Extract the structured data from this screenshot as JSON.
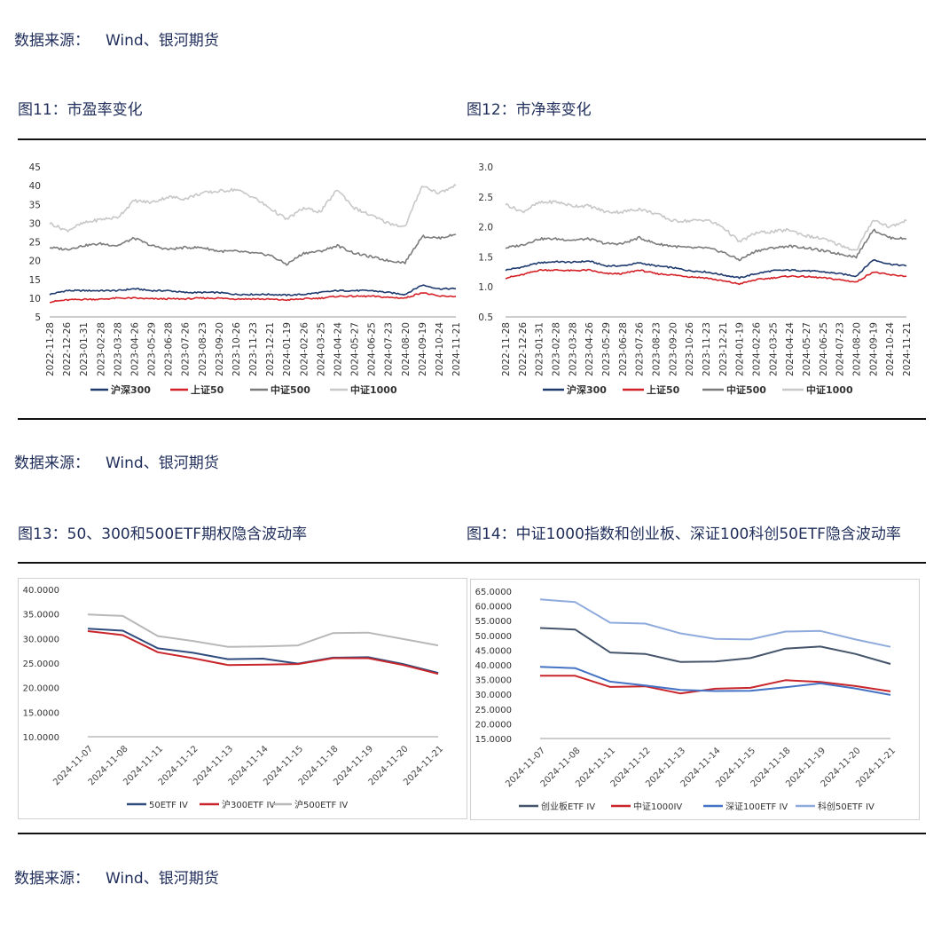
{
  "sources": {
    "s1_label": "数据来源：",
    "s1_value": "Wind、银河期货",
    "s2_label": "数据来源：",
    "s2_value": "Wind、银河期货",
    "s3_label": "数据来源：",
    "s3_value": "Wind、银河期货"
  },
  "figures": {
    "f11": "图11：市盈率变化",
    "f12": "图12：市净率变化",
    "f13": "图13：50、300和500ETF期权隐含波动率",
    "f14": "图14：中证1000指数和创业板、深证100科创50ETF隐含波动率"
  },
  "chart_data": [
    {
      "id": "pe",
      "type": "line",
      "title": "",
      "ylim": [
        5,
        45
      ],
      "yticks": [
        "45",
        "40",
        "35",
        "30",
        "25",
        "20",
        "15",
        "10",
        "5"
      ],
      "yticks_values": [
        45,
        40,
        35,
        30,
        25,
        20,
        15,
        10,
        5
      ],
      "xticks": [
        "2022-11-28",
        "2022-12-26",
        "2023-01-31",
        "2023-02-28",
        "2023-03-28",
        "2023-04-26",
        "2023-05-29",
        "2023-06-28",
        "2023-07-26",
        "2023-08-23",
        "2023-09-20",
        "2023-10-26",
        "2023-11-23",
        "2023-12-21",
        "2024-01-19",
        "2024-02-26",
        "2024-03-25",
        "2024-04-24",
        "2024-05-27",
        "2024-06-25",
        "2024-07-23",
        "2024-08-20",
        "2024-09-19",
        "2024-10-24",
        "2024-11-21"
      ],
      "grid": false,
      "legend_position": "bottom",
      "series": [
        {
          "name": "沪深300",
          "color": "#1f3a6e",
          "values": [
            11,
            12,
            12,
            12,
            12,
            12.5,
            12,
            12,
            11.5,
            11.5,
            11.5,
            11,
            11,
            11,
            10.8,
            11,
            11.5,
            12,
            12,
            12,
            11.5,
            11,
            13.5,
            12.5,
            12.5
          ]
        },
        {
          "name": "上证50",
          "color": "#d42027",
          "values": [
            9,
            9.5,
            9.7,
            9.7,
            10,
            10,
            9.8,
            9.8,
            9.8,
            10,
            10,
            9.8,
            9.8,
            9.7,
            9.5,
            9.8,
            10,
            10.5,
            10.5,
            10.5,
            10.2,
            10,
            11.5,
            10.5,
            10.5
          ]
        },
        {
          "name": "中证500",
          "color": "#7b7b7b",
          "values": [
            23.5,
            23,
            24,
            24.5,
            24,
            26,
            24,
            23,
            23.5,
            23.5,
            22.5,
            22.5,
            22,
            21.5,
            19,
            22,
            22.5,
            24,
            22,
            21,
            20,
            19.5,
            26.5,
            26,
            27
          ]
        },
        {
          "name": "中证1000",
          "color": "#c8c8c8",
          "values": [
            30,
            28,
            30,
            31,
            31.5,
            36,
            35.5,
            37,
            36.5,
            38,
            38.5,
            39,
            37,
            34,
            31,
            34,
            33,
            39,
            34,
            32,
            30,
            29,
            40,
            38,
            40
          ]
        }
      ]
    },
    {
      "id": "pb",
      "type": "line",
      "title": "",
      "ylim": [
        0.5,
        3.0
      ],
      "yticks": [
        "3.0",
        "2.5",
        "2.0",
        "1.5",
        "1.0",
        "0.5"
      ],
      "yticks_values": [
        3.0,
        2.5,
        2.0,
        1.5,
        1.0,
        0.5
      ],
      "xticks": [
        "2022-11-28",
        "2022-12-26",
        "2023-01-31",
        "2023-02-28",
        "2023-03-28",
        "2023-04-26",
        "2023-05-29",
        "2023-06-28",
        "2023-07-26",
        "2023-08-23",
        "2023-09-20",
        "2023-10-26",
        "2023-11-23",
        "2023-12-21",
        "2024-01-19",
        "2024-02-26",
        "2024-03-25",
        "2024-04-24",
        "2024-05-27",
        "2024-06-25",
        "2024-07-23",
        "2024-08-20",
        "2024-09-19",
        "2024-10-24",
        "2024-11-21"
      ],
      "grid": false,
      "legend_position": "bottom",
      "series": [
        {
          "name": "沪深300",
          "color": "#1f3a6e",
          "values": [
            1.28,
            1.33,
            1.4,
            1.42,
            1.41,
            1.43,
            1.35,
            1.35,
            1.4,
            1.35,
            1.32,
            1.27,
            1.25,
            1.2,
            1.15,
            1.22,
            1.27,
            1.28,
            1.27,
            1.25,
            1.22,
            1.18,
            1.45,
            1.38,
            1.35
          ]
        },
        {
          "name": "上证50",
          "color": "#d42027",
          "values": [
            1.15,
            1.2,
            1.28,
            1.28,
            1.27,
            1.28,
            1.22,
            1.22,
            1.28,
            1.22,
            1.2,
            1.17,
            1.15,
            1.1,
            1.05,
            1.12,
            1.15,
            1.18,
            1.17,
            1.15,
            1.12,
            1.08,
            1.25,
            1.2,
            1.18
          ]
        },
        {
          "name": "中证500",
          "color": "#7b7b7b",
          "values": [
            1.65,
            1.7,
            1.8,
            1.8,
            1.78,
            1.8,
            1.72,
            1.72,
            1.82,
            1.72,
            1.68,
            1.65,
            1.65,
            1.58,
            1.45,
            1.6,
            1.65,
            1.68,
            1.65,
            1.6,
            1.55,
            1.5,
            1.95,
            1.82,
            1.8
          ]
        },
        {
          "name": "中证1000",
          "color": "#c8c8c8",
          "values": [
            2.38,
            2.25,
            2.4,
            2.42,
            2.35,
            2.35,
            2.25,
            2.25,
            2.3,
            2.22,
            2.1,
            2.1,
            2.12,
            2.0,
            1.75,
            1.9,
            1.92,
            1.95,
            1.85,
            1.8,
            1.7,
            1.6,
            2.12,
            2.0,
            2.1
          ]
        }
      ]
    },
    {
      "id": "etf_iv",
      "type": "line",
      "title": "",
      "ylim": [
        10,
        40
      ],
      "yticks": [
        "40.0000",
        "35.0000",
        "30.0000",
        "25.0000",
        "20.0000",
        "15.0000",
        "10.0000"
      ],
      "yticks_values": [
        40,
        35,
        30,
        25,
        20,
        15,
        10
      ],
      "categories": [
        "2024-11-07",
        "2024-11-08",
        "2024-11-11",
        "2024-11-12",
        "2024-11-13",
        "2024-11-14",
        "2024-11-15",
        "2024-11-18",
        "2024-11-19",
        "2024-11-20",
        "2024-11-21"
      ],
      "grid": false,
      "legend_position": "bottom",
      "series": [
        {
          "name": "50ETF IV",
          "color": "#2f4b7c",
          "values": [
            32.0,
            31.6,
            28.0,
            27.1,
            25.8,
            25.9,
            24.9,
            26.1,
            26.2,
            24.8,
            23.0
          ]
        },
        {
          "name": "沪300ETF IV",
          "color": "#c9262c",
          "values": [
            31.5,
            30.7,
            27.2,
            26.0,
            24.6,
            24.7,
            24.8,
            26.0,
            26.0,
            24.6,
            22.8
          ]
        },
        {
          "name": "沪500ETF IV",
          "color": "#b8b8b8",
          "values": [
            34.9,
            34.6,
            30.5,
            29.5,
            28.3,
            28.4,
            28.6,
            31.1,
            31.2,
            29.9,
            28.6
          ]
        }
      ]
    },
    {
      "id": "idx_iv",
      "type": "line",
      "title": "",
      "ylim": [
        15,
        65
      ],
      "yticks": [
        "65.0000",
        "60.0000",
        "55.0000",
        "50.0000",
        "45.0000",
        "40.0000",
        "35.0000",
        "30.0000",
        "25.0000",
        "20.0000",
        "15.0000"
      ],
      "yticks_values": [
        65,
        60,
        55,
        50,
        45,
        40,
        35,
        30,
        25,
        20,
        15
      ],
      "categories": [
        "2024-11-07",
        "2024-11-08",
        "2024-11-11",
        "2024-11-12",
        "2024-11-13",
        "2024-11-14",
        "2024-11-15",
        "2024-11-18",
        "2024-11-19",
        "2024-11-20",
        "2024-11-21"
      ],
      "grid": false,
      "legend_position": "bottom",
      "series": [
        {
          "name": "创业板ETF IV",
          "color": "#44546a",
          "values": [
            52.5,
            52.0,
            44.2,
            43.7,
            41.0,
            41.1,
            42.3,
            45.5,
            46.2,
            43.7,
            40.3
          ]
        },
        {
          "name": "中证1000IV",
          "color": "#c9262c",
          "values": [
            36.3,
            36.3,
            32.5,
            32.7,
            30.3,
            31.9,
            32.2,
            34.8,
            34.2,
            32.8,
            31.0
          ]
        },
        {
          "name": "深证100ETF IV",
          "color": "#4472c4",
          "values": [
            39.3,
            38.9,
            34.3,
            33.0,
            31.5,
            31.1,
            31.2,
            32.4,
            33.7,
            32.0,
            29.8
          ]
        },
        {
          "name": "科创50ETF IV",
          "color": "#8faadc",
          "values": [
            62.2,
            61.3,
            54.3,
            54.0,
            50.7,
            48.8,
            48.6,
            51.3,
            51.5,
            48.6,
            46.1
          ]
        }
      ]
    }
  ]
}
